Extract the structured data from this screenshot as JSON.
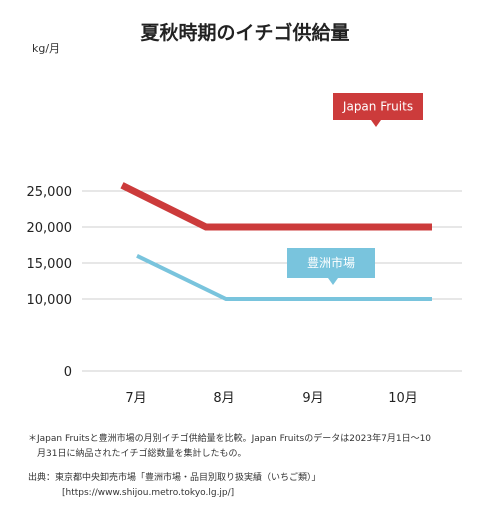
{
  "chart_data": {
    "type": "line",
    "title": "夏秋時期のイチゴ供給量",
    "ylabel": "kg/月",
    "categories": [
      "7月",
      "8月",
      "9月",
      "10月"
    ],
    "yticks": [
      "0",
      "10,000",
      "15,000",
      "20,000",
      "25,000"
    ],
    "ytick_values": [
      0,
      10000,
      15000,
      20000,
      25000
    ],
    "ylim": [
      0,
      27000
    ],
    "grid": true,
    "series": [
      {
        "name": "Japan Fruits",
        "color": "#cc3b3b",
        "values": [
          25800,
          20000,
          20000,
          20000
        ]
      },
      {
        "name": "豊洲市場",
        "color": "#79c4dd",
        "values": [
          16000,
          10000,
          10000,
          10000
        ]
      }
    ]
  },
  "notes": {
    "line1": "＊Japan Fruitsと豊洲市場の月別イチゴ供給量を比較。Japan Fruitsのデータは2023年7月1日〜10",
    "line2": "月31日に納品されたイチゴ総数量を集計したもの。",
    "source": "出典：東京都中央卸売市場「豊洲市場・品目別取り扱実績（いちご類）」",
    "url": "[https://www.shijou.metro.tokyo.lg.jp/]"
  }
}
